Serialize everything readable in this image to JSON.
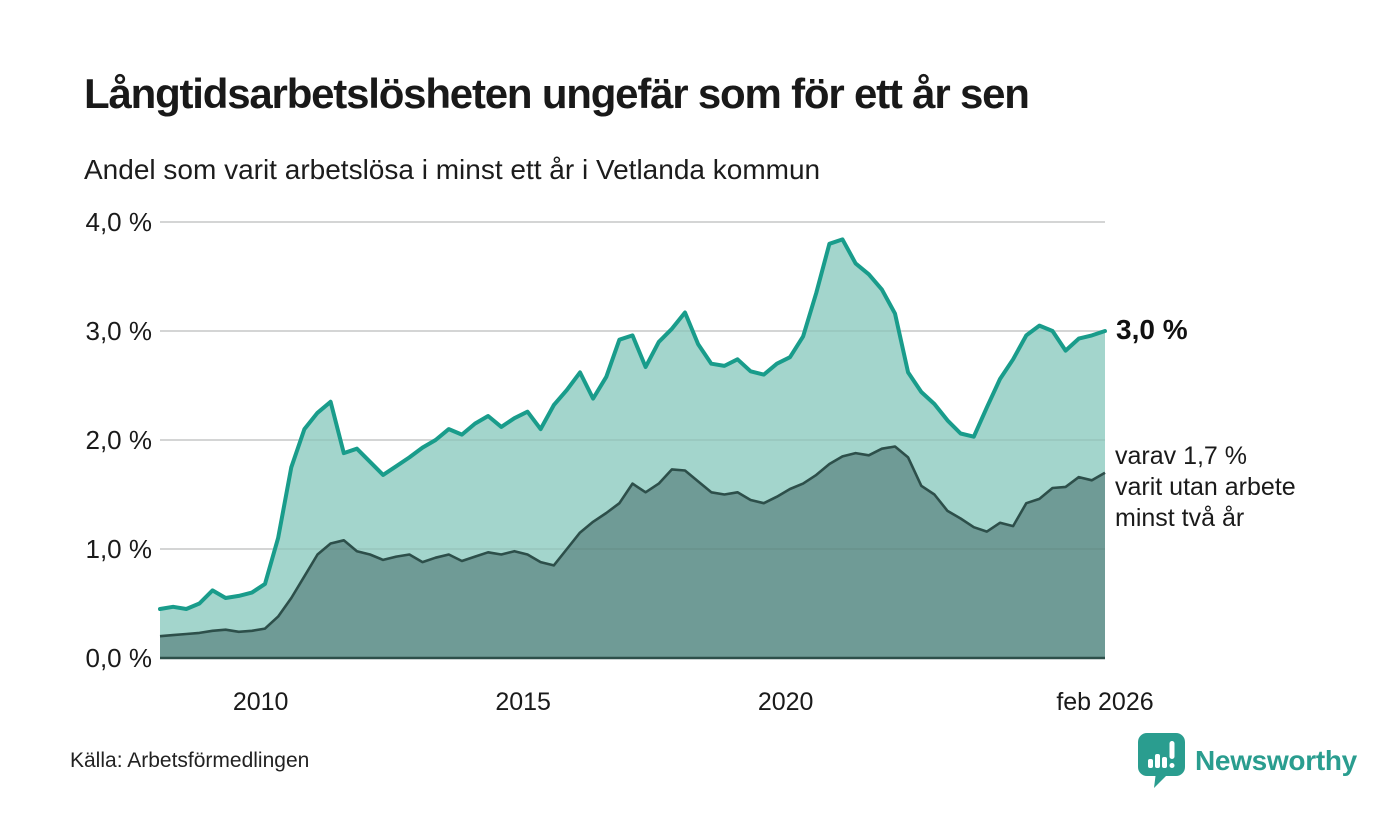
{
  "header": {
    "title": "Långtidsarbetslösheten ungefär som för ett år sen",
    "subtitle": "Andel som varit arbetslösa i minst ett år i Vetlanda kommun"
  },
  "annotations": {
    "latest_value": "3,0 %",
    "secondary": [
      "varav 1,7 %",
      "varit utan arbete",
      "minst två år"
    ]
  },
  "footer": {
    "source": "Källa: Arbetsförmedlingen",
    "brand": "Newsworthy"
  },
  "colors": {
    "line_primary": "#199c8b",
    "fill_primary": "#a3d5cc",
    "line_secondary": "#2d4f4a",
    "fill_secondary": "#6f9b96",
    "grid": "#d8d8d8",
    "text": "#1a1a1a",
    "brand": "#2a9d8f"
  },
  "chart_data": {
    "type": "area",
    "title": "Långtidsarbetslösheten ungefär som för ett år sen",
    "subtitle": "Andel som varit arbetslösa i minst ett år i Vetlanda kommun",
    "x_unit": "decimal year (monthly series, feb 2008 – feb 2026)",
    "x_start": 2008.083,
    "x_step": 0.25,
    "xlim": [
      2008.083,
      2026.083
    ],
    "ylim": [
      0,
      4.0
    ],
    "grid": "horizontal",
    "legend_position": "right-annotations",
    "yticks": [
      {
        "v": 0,
        "label": "0,0 %"
      },
      {
        "v": 1,
        "label": "1,0 %"
      },
      {
        "v": 2,
        "label": "2,0 %"
      },
      {
        "v": 3,
        "label": "3,0 %"
      },
      {
        "v": 4,
        "label": "4,0 %"
      }
    ],
    "xticks": [
      {
        "v": 2010,
        "label": "2010"
      },
      {
        "v": 2015,
        "label": "2015"
      },
      {
        "v": 2020,
        "label": "2020"
      },
      {
        "v": 2026.083,
        "label": "feb 2026"
      }
    ],
    "series": [
      {
        "name": "Andel arbetslösa minst ett år",
        "latest_label": "3,0 %",
        "latest_value": 3.0,
        "values": [
          0.45,
          0.47,
          0.45,
          0.5,
          0.62,
          0.55,
          0.57,
          0.6,
          0.68,
          1.1,
          1.75,
          2.1,
          2.25,
          2.35,
          1.88,
          1.92,
          1.8,
          1.68,
          1.76,
          1.84,
          1.93,
          2.0,
          2.1,
          2.05,
          2.15,
          2.22,
          2.12,
          2.2,
          2.26,
          2.1,
          2.32,
          2.46,
          2.62,
          2.38,
          2.58,
          2.92,
          2.96,
          2.67,
          2.9,
          3.02,
          3.17,
          2.88,
          2.7,
          2.68,
          2.74,
          2.63,
          2.6,
          2.7,
          2.76,
          2.95,
          3.35,
          3.8,
          3.84,
          3.62,
          3.52,
          3.38,
          3.16,
          2.62,
          2.44,
          2.33,
          2.18,
          2.06,
          2.03,
          2.3,
          2.56,
          2.74,
          2.96,
          3.05,
          3.0,
          2.82,
          2.93,
          2.96,
          3.0
        ]
      },
      {
        "name": "varav arbetslösa minst två år",
        "latest_label": "1,7 %",
        "latest_value": 1.7,
        "values": [
          0.2,
          0.21,
          0.22,
          0.23,
          0.25,
          0.26,
          0.24,
          0.25,
          0.27,
          0.38,
          0.55,
          0.75,
          0.95,
          1.05,
          1.08,
          0.98,
          0.95,
          0.9,
          0.93,
          0.95,
          0.88,
          0.92,
          0.95,
          0.89,
          0.93,
          0.97,
          0.95,
          0.98,
          0.95,
          0.88,
          0.85,
          1.0,
          1.15,
          1.25,
          1.33,
          1.42,
          1.6,
          1.52,
          1.6,
          1.73,
          1.72,
          1.62,
          1.52,
          1.5,
          1.52,
          1.45,
          1.42,
          1.48,
          1.55,
          1.6,
          1.68,
          1.78,
          1.85,
          1.88,
          1.86,
          1.92,
          1.94,
          1.84,
          1.58,
          1.5,
          1.35,
          1.28,
          1.2,
          1.16,
          1.24,
          1.21,
          1.42,
          1.46,
          1.56,
          1.57,
          1.66,
          1.63,
          1.7
        ]
      }
    ]
  }
}
